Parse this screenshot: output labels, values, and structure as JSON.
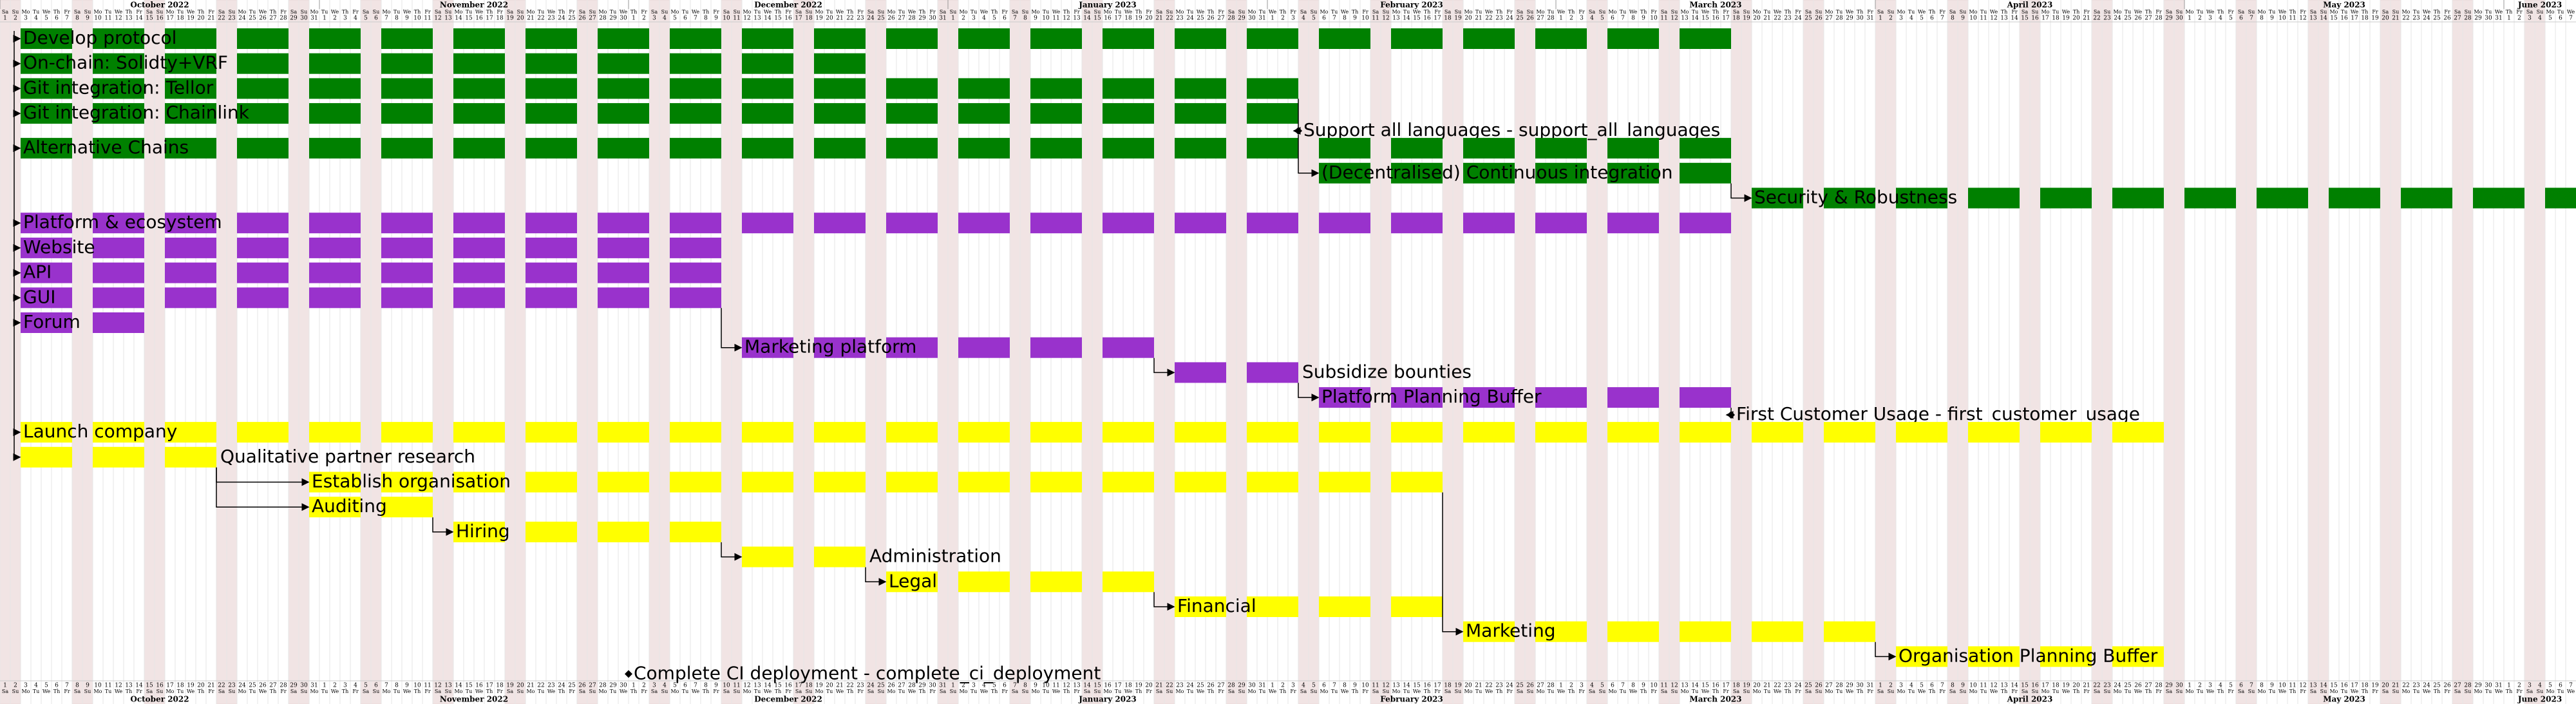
{
  "chart_data": {
    "type": "gantt",
    "xlim": [
      "2022-10-01",
      "2023-06-07"
    ],
    "months": [
      "October 2022",
      "November 2022",
      "December 2022",
      "January 2023",
      "February 2023",
      "March 2023",
      "April 2023",
      "May 2023",
      "June 2023"
    ],
    "weekdays": [
      "Su",
      "Mo",
      "Tu",
      "We",
      "Th",
      "Fr",
      "Sa"
    ],
    "day_labels": [
      1,
      2,
      3,
      4,
      5,
      6,
      7,
      8,
      9,
      10,
      11,
      12,
      13,
      14,
      15,
      16,
      17,
      18,
      19,
      20,
      21,
      22,
      23,
      24,
      25,
      26,
      27,
      28,
      29,
      30,
      31
    ],
    "tasks": [
      {
        "name": "Develop protocol",
        "start": "2022-10-03",
        "end": "2023-03-17",
        "color": "#008000"
      },
      {
        "name": "On-chain: Solidty+VRF",
        "start": "2022-10-03",
        "end": "2022-12-23",
        "color": "#008000"
      },
      {
        "name": "Git integration: Tellor",
        "start": "2022-10-03",
        "end": "2023-02-03",
        "color": "#008000"
      },
      {
        "name": "Git integration: Chainlink",
        "start": "2022-10-03",
        "end": "2023-02-03",
        "color": "#008000"
      },
      {
        "name": "Support all languages - support_all_languages",
        "date": "2023-02-04"
      },
      {
        "name": "Alternative Chains",
        "start": "2022-10-03",
        "end": "2023-03-17",
        "color": "#008000"
      },
      {
        "name": "(Decentralised) Continuous integration",
        "start": "2023-02-06",
        "end": "2023-03-17",
        "color": "#008000"
      },
      {
        "name": "Security & Robustness",
        "start": "2023-03-20",
        "end": "2023-06-09",
        "color": "#008000"
      },
      {
        "name": "Platform & ecosystem",
        "start": "2022-10-03",
        "end": "2023-03-17",
        "color": "#9932cc"
      },
      {
        "name": "Website",
        "start": "2022-10-03",
        "end": "2022-12-09",
        "color": "#9932cc"
      },
      {
        "name": "API",
        "start": "2022-10-03",
        "end": "2022-12-09",
        "color": "#9932cc"
      },
      {
        "name": "GUI",
        "start": "2022-10-03",
        "end": "2022-12-09",
        "color": "#9932cc"
      },
      {
        "name": "Forum",
        "start": "2022-10-03",
        "end": "2022-10-14",
        "color": "#9932cc"
      },
      {
        "name": "Marketing platform",
        "start": "2022-12-12",
        "end": "2023-01-20",
        "color": "#9932cc"
      },
      {
        "name": "Subsidize bounties",
        "start": "2023-01-23",
        "end": "2023-02-03",
        "color": "#9932cc"
      },
      {
        "name": "Platform Planning Buffer",
        "start": "2023-02-06",
        "end": "2023-03-17",
        "color": "#9932cc"
      },
      {
        "name": "First Customer Usage - first_customer_usage",
        "date": "2023-03-18"
      },
      {
        "name": "Launch company",
        "start": "2022-10-03",
        "end": "2023-04-28",
        "color": "#ffff00"
      },
      {
        "name": "Qualitative partner research",
        "start": "2022-10-03",
        "end": "2022-10-21",
        "color": "#ffff00"
      },
      {
        "name": "Establish organisation",
        "start": "2022-10-31",
        "end": "2023-02-17",
        "color": "#ffff00"
      },
      {
        "name": "Auditing",
        "start": "2022-10-31",
        "end": "2022-11-11",
        "color": "#ffff00"
      },
      {
        "name": "Hiring",
        "start": "2022-11-14",
        "end": "2022-12-09",
        "color": "#ffff00"
      },
      {
        "name": "Administration",
        "start": "2022-12-12",
        "end": "2022-12-23",
        "color": "#ffff00"
      },
      {
        "name": "Legal",
        "start": "2022-12-26",
        "end": "2023-01-20",
        "color": "#ffff00"
      },
      {
        "name": "Financial",
        "start": "2023-01-23",
        "end": "2023-02-17",
        "color": "#ffff00"
      },
      {
        "name": "Marketing",
        "start": "2023-02-20",
        "end": "2023-03-31",
        "color": "#ffff00"
      },
      {
        "name": "Organisation Planning Buffer",
        "start": "2023-04-03",
        "end": "2023-04-28",
        "color": "#ffff00"
      },
      {
        "name": "Complete CI deployment - complete_ci_deployment",
        "date": "2022-12-01"
      }
    ],
    "links": [
      [
        2,
        4
      ],
      [
        4,
        6
      ],
      [
        6,
        7
      ],
      [
        11,
        13
      ],
      [
        13,
        14
      ],
      [
        14,
        15
      ],
      [
        15,
        16
      ],
      [
        18,
        19
      ],
      [
        18,
        20
      ],
      [
        20,
        21
      ],
      [
        21,
        22
      ],
      [
        22,
        23
      ],
      [
        23,
        24
      ],
      [
        19,
        25
      ],
      [
        25,
        26
      ]
    ]
  }
}
